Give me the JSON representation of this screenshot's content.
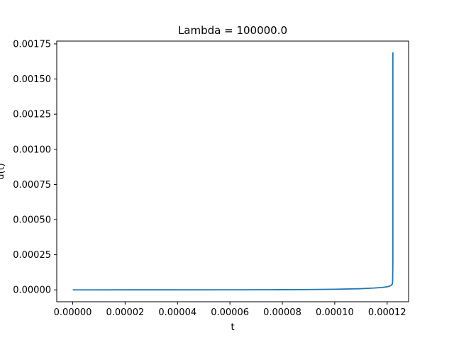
{
  "chart_data": {
    "type": "line",
    "title": "Lambda = 100000.0",
    "xlabel": "t",
    "ylabel": "u(t)",
    "xlim": [
      -6.1e-06,
      0.0001282
    ],
    "ylim": [
      -8.45e-05,
      0.00177
    ],
    "xticks": [
      0.0,
      2e-05,
      4e-05,
      6e-05,
      8e-05,
      0.0001,
      0.00012
    ],
    "xtick_labels": [
      "0.00000",
      "0.00002",
      "0.00004",
      "0.00006",
      "0.00008",
      "0.00010",
      "0.00012"
    ],
    "yticks": [
      0.0,
      0.00025,
      0.0005,
      0.00075,
      0.001,
      0.00125,
      0.0015,
      0.00175
    ],
    "ytick_labels": [
      "0.00000",
      "0.00025",
      "0.00050",
      "0.00075",
      "0.00100",
      "0.00125",
      "0.00150",
      "0.00175"
    ],
    "grid": false,
    "series": [
      {
        "color": "#1f77b4",
        "x": [
          0.0,
          2e-05,
          4e-05,
          6e-05,
          8e-05,
          9e-05,
          0.0001,
          0.00011,
          0.000115,
          0.000118,
          0.00012,
          0.000121,
          0.0001215,
          0.000122,
          0.0001221,
          0.0001222,
          0.0001222
        ],
        "y": [
          0.0,
          1e-07,
          3e-07,
          7e-07,
          1.5e-06,
          2.5e-06,
          4.5e-06,
          8.5e-06,
          1.3e-05,
          1.7e-05,
          2.2e-05,
          2.7e-05,
          3.2e-05,
          4.2e-05,
          6e-05,
          0.0002,
          0.00169
        ]
      }
    ]
  }
}
